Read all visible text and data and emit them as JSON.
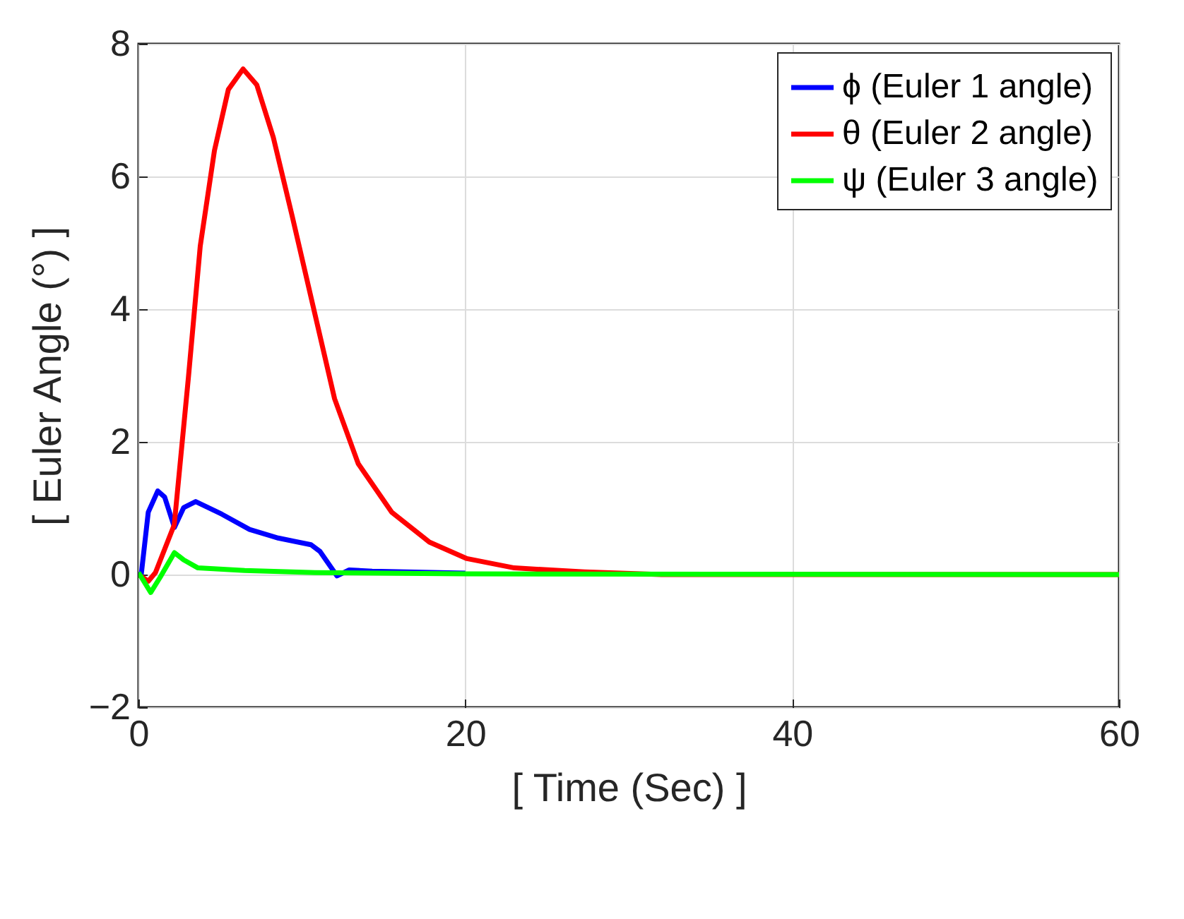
{
  "chart_data": {
    "type": "line",
    "xlabel": "[ Time (Sec) ]",
    "ylabel": "[ Euler Angle (°) ]",
    "xlim": [
      0,
      60
    ],
    "xticks": [
      0,
      20,
      40,
      60
    ],
    "ylim": [
      -2,
      8
    ],
    "yticks": [
      -2,
      0,
      2,
      4,
      6,
      8
    ],
    "grid": true,
    "legend": "top right",
    "line_style": "solid",
    "series": [
      {
        "name": "ϕ (Euler 1 angle)",
        "color": "#0000ff",
        "x": [
          0,
          0.17,
          0.6,
          1.18,
          1.6,
          2.2,
          2.77,
          3.5,
          5.1,
          6.8,
          8.55,
          10.56,
          11.1,
          12.15,
          12.9,
          14.3,
          20
        ],
        "values": [
          0,
          0,
          0.94,
          1.26,
          1.17,
          0.71,
          1.01,
          1.1,
          0.91,
          0.68,
          0.55,
          0.45,
          0.35,
          -0.02,
          0.07,
          0.05,
          0.02
        ]
      },
      {
        "name": "θ (Euler 2 angle)",
        "color": "#ff0000",
        "x": [
          0,
          0.6,
          1.04,
          2.19,
          3.06,
          3.78,
          4.65,
          5.5,
          6.4,
          7.24,
          8.25,
          9.4,
          10.7,
          12,
          13.45,
          15.5,
          17.8,
          20.1,
          23,
          27.3,
          32,
          60
        ],
        "values": [
          0,
          -0.1,
          0.03,
          0.75,
          2.98,
          4.95,
          6.39,
          7.31,
          7.62,
          7.38,
          6.59,
          5.41,
          4.03,
          2.65,
          1.67,
          0.94,
          0.49,
          0.24,
          0.1,
          0.04,
          0,
          0
        ]
      },
      {
        "name": "ψ (Euler 3 angle)",
        "color": "#00ff00",
        "x": [
          0,
          0.75,
          1.33,
          2.2,
          2.77,
          3.64,
          6.5,
          10.8,
          20,
          60
        ],
        "values": [
          0.03,
          -0.27,
          -0.04,
          0.33,
          0.22,
          0.1,
          0.06,
          0.03,
          0.01,
          0
        ]
      }
    ]
  }
}
